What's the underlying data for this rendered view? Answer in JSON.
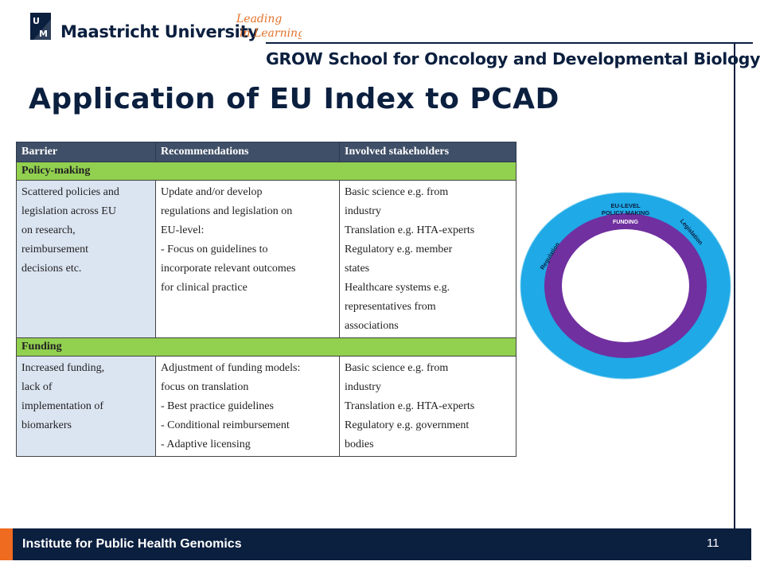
{
  "header": {
    "university": "Maastricht University",
    "tagline_line1": "Leading",
    "tagline_line2": "in Learning!",
    "school": "GROW School for Oncology and Developmental Biology"
  },
  "slide": {
    "title": "Application of EU Index to PCAD"
  },
  "table": {
    "headers": [
      "Barrier",
      "Recommendations",
      "Involved stakeholders"
    ],
    "sections": [
      {
        "label": "Policy-making",
        "barrier": [
          "Scattered policies and",
          "legislation across EU",
          "on research,",
          "reimbursement",
          "decisions etc."
        ],
        "recommendations": [
          "Update and/or develop",
          "regulations and legislation on",
          "EU-level:",
          "- Focus on guidelines to",
          "incorporate relevant outcomes",
          "for clinical practice"
        ],
        "stakeholders": [
          "Basic science e.g. from",
          "industry",
          "Translation e.g. HTA-experts",
          "Regulatory e.g. member",
          "states",
          "Healthcare systems e.g.",
          "representatives from",
          "associations"
        ]
      },
      {
        "label": "Funding",
        "barrier": [
          "Increased funding,",
          "lack of",
          "implementation of",
          "biomarkers"
        ],
        "recommendations": [
          "Adjustment of funding models:",
          "focus on translation",
          "- Best practice guidelines",
          "- Conditional reimbursement",
          "- Adaptive licensing"
        ],
        "stakeholders": [
          "Basic science e.g. from",
          "industry",
          "Translation e.g. HTA-experts",
          "Regulatory e.g. government",
          "bodies"
        ]
      }
    ]
  },
  "diagram": {
    "outer_top_line1": "EU-LEVEL",
    "outer_top_line2": "POLICY MAKING",
    "outer_left": "Regulation",
    "outer_right": "Legislation",
    "inner_label": "FUNDING",
    "colors": {
      "outer": "#1fa9e6",
      "inner": "#7030a0",
      "center": "#ffffff"
    }
  },
  "footer": {
    "institute": "Institute for Public Health Genomics",
    "page_number": "11"
  }
}
